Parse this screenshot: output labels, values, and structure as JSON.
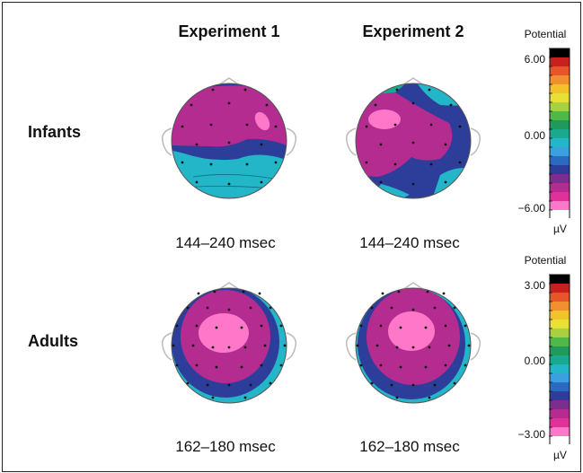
{
  "columns": [
    "Experiment 1",
    "Experiment 2"
  ],
  "rows": [
    {
      "label": "Infants",
      "time_windows": [
        "144–240 msec",
        "144–240 msec"
      ]
    },
    {
      "label": "Adults",
      "time_windows": [
        "162–180 msec",
        "162–180 msec"
      ]
    }
  ],
  "colorbars": [
    {
      "title": "Potential",
      "ticks": [
        "6.00",
        "0.00",
        "−6.00"
      ],
      "unit": "µV"
    },
    {
      "title": "Potential",
      "ticks": [
        "3.00",
        "0.00",
        "−3.00"
      ],
      "unit": "µV"
    }
  ],
  "palette": [
    "#000000",
    "#c8201e",
    "#e8552a",
    "#f09030",
    "#f2c22a",
    "#e8e035",
    "#a8d040",
    "#4fb848",
    "#1f9a5a",
    "#1aa88e",
    "#22b6c8",
    "#3aa0e0",
    "#2a6ac0",
    "#2c3e9a",
    "#7a2e8e",
    "#b42c90",
    "#e0309a",
    "#ff77c8",
    "#ffffff"
  ]
}
